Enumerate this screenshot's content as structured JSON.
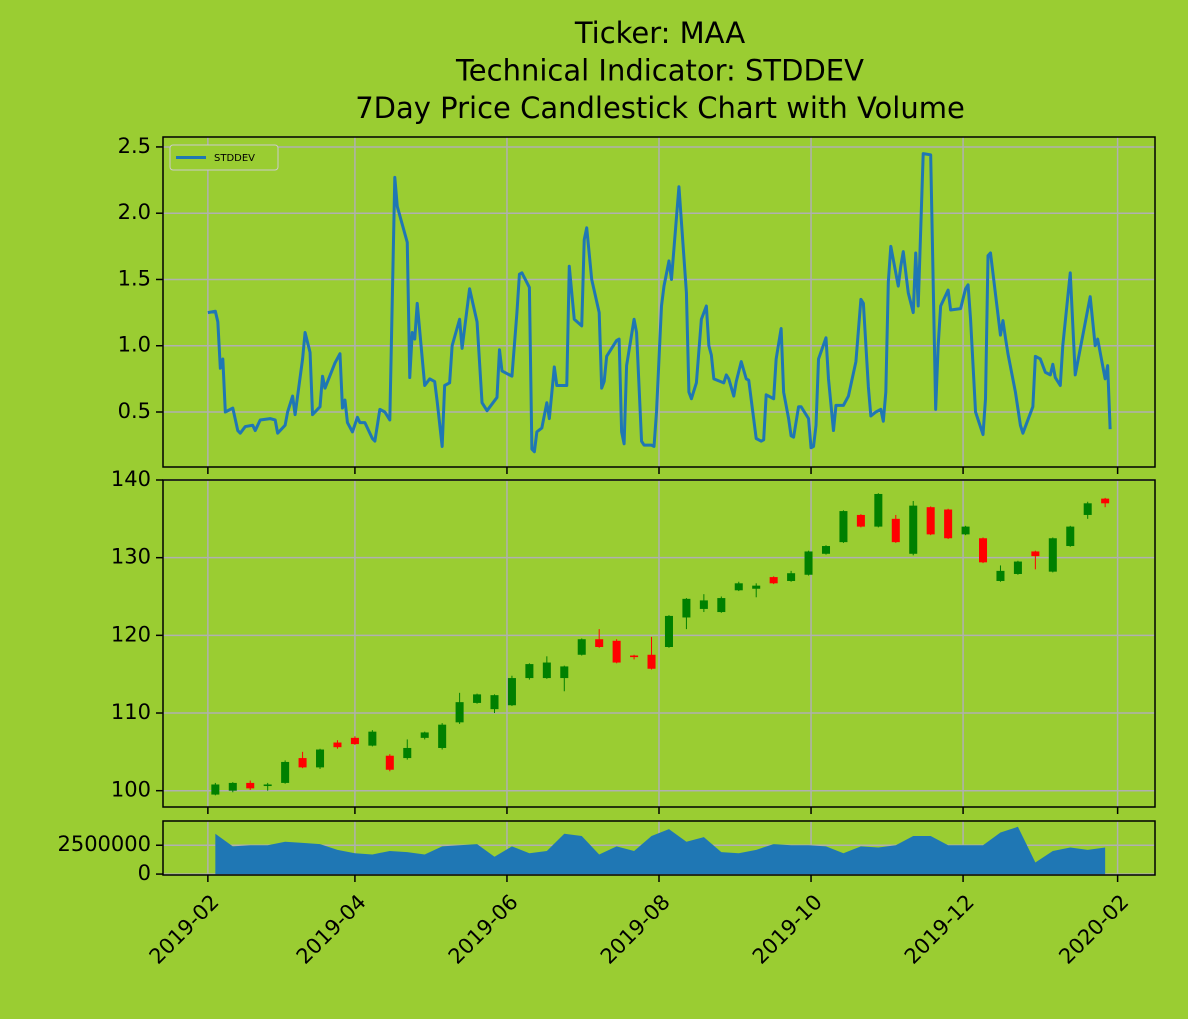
{
  "chart_data": [
    {
      "type": "line",
      "title": [
        "Ticker: MAA",
        "Technical Indicator: STDDEV",
        "7Day Price Candlestick Chart with Volume"
      ],
      "x": [
        "2019-02-01",
        "2019-02-04",
        "2019-02-05",
        "2019-02-06",
        "2019-02-07",
        "2019-02-08",
        "2019-02-11",
        "2019-02-13",
        "2019-02-14",
        "2019-02-16",
        "2019-02-19",
        "2019-02-20",
        "2019-02-22",
        "2019-02-26",
        "2019-02-28",
        "2019-03-01",
        "2019-03-04",
        "2019-03-05",
        "2019-03-07",
        "2019-03-08",
        "2019-03-11",
        "2019-03-12",
        "2019-03-14",
        "2019-03-15",
        "2019-03-18",
        "2019-03-19",
        "2019-03-20",
        "2019-03-24",
        "2019-03-26",
        "2019-03-27",
        "2019-03-28",
        "2019-03-29",
        "2019-03-31",
        "2019-04-02",
        "2019-04-03",
        "2019-04-05",
        "2019-04-08",
        "2019-04-09",
        "2019-04-11",
        "2019-04-13",
        "2019-04-15",
        "2019-04-17",
        "2019-04-18",
        "2019-04-22",
        "2019-04-23",
        "2019-04-24",
        "2019-04-25",
        "2019-04-26",
        "2019-04-29",
        "2019-05-01",
        "2019-05-03",
        "2019-05-04",
        "2019-05-06",
        "2019-05-07",
        "2019-05-09",
        "2019-05-10",
        "2019-05-13",
        "2019-05-14",
        "2019-05-17",
        "2019-05-20",
        "2019-05-22",
        "2019-05-24",
        "2019-05-28",
        "2019-05-29",
        "2019-05-30",
        "2019-06-03",
        "2019-06-05",
        "2019-06-06",
        "2019-06-07",
        "2019-06-10",
        "2019-06-11",
        "2019-06-12",
        "2019-06-13",
        "2019-06-15",
        "2019-06-17",
        "2019-06-18",
        "2019-06-20",
        "2019-06-21",
        "2019-06-25",
        "2019-06-26",
        "2019-06-28",
        "2019-07-01",
        "2019-07-02",
        "2019-07-03",
        "2019-07-05",
        "2019-07-08",
        "2019-07-09",
        "2019-07-10",
        "2019-07-11",
        "2019-07-15",
        "2019-07-16",
        "2019-07-17",
        "2019-07-18",
        "2019-07-19",
        "2019-07-22",
        "2019-07-23",
        "2019-07-25",
        "2019-07-26",
        "2019-07-29",
        "2019-07-30",
        "2019-07-31",
        "2019-08-02",
        "2019-08-03",
        "2019-08-05",
        "2019-08-06",
        "2019-08-09",
        "2019-08-12",
        "2019-08-13",
        "2019-08-14",
        "2019-08-16",
        "2019-08-18",
        "2019-08-20",
        "2019-08-21",
        "2019-08-22",
        "2019-08-23",
        "2019-08-27",
        "2019-08-28",
        "2019-08-29",
        "2019-08-31",
        "2019-09-01",
        "2019-09-03",
        "2019-09-05",
        "2019-09-06",
        "2019-09-09",
        "2019-09-11",
        "2019-09-12",
        "2019-09-13",
        "2019-09-16",
        "2019-09-17",
        "2019-09-19",
        "2019-09-20",
        "2019-09-22",
        "2019-09-23",
        "2019-09-24",
        "2019-09-26",
        "2019-09-27",
        "2019-09-30",
        "2019-10-01",
        "2019-10-02",
        "2019-10-03",
        "2019-10-04",
        "2019-10-07",
        "2019-10-08",
        "2019-10-10",
        "2019-10-11",
        "2019-10-14",
        "2019-10-16",
        "2019-10-19",
        "2019-10-21",
        "2019-10-22",
        "2019-10-24",
        "2019-10-25",
        "2019-10-27",
        "2019-10-29",
        "2019-10-30",
        "2019-10-31",
        "2019-11-01",
        "2019-11-02",
        "2019-11-05",
        "2019-11-06",
        "2019-11-07",
        "2019-11-09",
        "2019-11-11",
        "2019-11-12",
        "2019-11-13",
        "2019-11-15",
        "2019-11-18",
        "2019-11-20",
        "2019-11-21",
        "2019-11-22",
        "2019-11-24",
        "2019-11-25",
        "2019-11-26",
        "2019-11-30",
        "2019-12-02",
        "2019-12-03",
        "2019-12-04",
        "2019-12-06",
        "2019-12-09",
        "2019-12-10",
        "2019-12-11",
        "2019-12-12",
        "2019-12-16",
        "2019-12-17",
        "2019-12-18",
        "2019-12-19",
        "2019-12-22",
        "2019-12-24",
        "2019-12-25",
        "2019-12-29",
        "2019-12-30",
        "2020-01-01",
        "2020-01-03",
        "2020-01-05",
        "2020-01-06",
        "2020-01-07",
        "2020-01-09",
        "2020-01-10",
        "2020-01-13",
        "2020-01-15",
        "2020-01-21",
        "2020-01-23",
        "2020-01-24",
        "2020-01-27",
        "2020-01-28",
        "2020-01-29"
      ],
      "series": [
        {
          "name": "STDDEV",
          "color": "#1f77b4",
          "values": [
            1.25,
            1.26,
            1.18,
            0.83,
            0.9,
            0.5,
            0.53,
            0.36,
            0.34,
            0.39,
            0.4,
            0.36,
            0.44,
            0.45,
            0.44,
            0.34,
            0.4,
            0.5,
            0.62,
            0.48,
            0.9,
            1.1,
            0.95,
            0.48,
            0.54,
            0.77,
            0.68,
            0.87,
            0.94,
            0.53,
            0.59,
            0.42,
            0.35,
            0.46,
            0.42,
            0.42,
            0.3,
            0.28,
            0.52,
            0.5,
            0.44,
            2.27,
            2.05,
            1.78,
            0.76,
            1.1,
            1.05,
            1.32,
            0.7,
            0.75,
            0.73,
            0.58,
            0.24,
            0.7,
            0.72,
            1.0,
            1.2,
            0.98,
            1.43,
            1.18,
            0.57,
            0.51,
            0.61,
            0.97,
            0.81,
            0.77,
            1.25,
            1.54,
            1.55,
            1.44,
            0.22,
            0.2,
            0.35,
            0.38,
            0.57,
            0.45,
            0.84,
            0.7,
            0.7,
            1.6,
            1.2,
            1.15,
            1.8,
            1.89,
            1.5,
            1.25,
            0.68,
            0.73,
            0.92,
            1.04,
            1.05,
            0.35,
            0.26,
            0.85,
            1.2,
            1.1,
            0.28,
            0.25,
            0.25,
            0.24,
            0.5,
            1.3,
            1.45,
            1.64,
            1.5,
            2.2,
            1.4,
            0.65,
            0.6,
            0.72,
            1.2,
            1.3,
            1.0,
            0.93,
            0.75,
            0.72,
            0.78,
            0.75,
            0.62,
            0.73,
            0.88,
            0.75,
            0.74,
            0.3,
            0.28,
            0.29,
            0.63,
            0.6,
            0.9,
            1.13,
            0.65,
            0.45,
            0.32,
            0.31,
            0.54,
            0.54,
            0.45,
            0.23,
            0.24,
            0.4,
            0.9,
            1.06,
            0.75,
            0.36,
            0.55,
            0.55,
            0.62,
            0.88,
            1.35,
            1.32,
            0.69,
            0.47,
            0.5,
            0.52,
            0.43,
            0.65,
            1.48,
            1.75,
            1.45,
            1.6,
            1.71,
            1.4,
            1.25,
            1.7,
            1.3,
            2.45,
            2.44,
            0.52,
            1.0,
            1.3,
            1.38,
            1.42,
            1.27,
            1.28,
            1.43,
            1.46,
            1.2,
            0.5,
            0.33,
            0.6,
            1.68,
            1.7,
            1.08,
            1.19,
            1.06,
            0.94,
            0.65,
            0.4,
            0.34,
            0.54,
            0.92,
            0.9,
            0.8,
            0.78,
            0.86,
            0.76,
            0.7,
            1.0,
            1.55,
            0.78,
            1.37,
            1.0,
            1.05,
            0.75,
            0.85,
            0.37
          ]
        }
      ],
      "xlim": [
        "2019-01-14",
        "2020-02-16"
      ],
      "xticks": [
        "2019-02-01",
        "2019-04-01",
        "2019-06-01",
        "2019-08-01",
        "2019-10-01",
        "2019-12-01",
        "2020-02-01"
      ],
      "ylim": [
        0.085,
        2.575
      ],
      "yticks": [
        0.5,
        {
          "value": 1,
          "label": "1.0"
        },
        1.5,
        {
          "value": 2,
          "label": "2.0"
        },
        2.5
      ],
      "grid": true,
      "legend": "upper left"
    },
    {
      "type": "candlestick",
      "x": [
        "2019-02-04",
        "2019-02-11",
        "2019-02-18",
        "2019-02-25",
        "2019-03-04",
        "2019-03-11",
        "2019-03-18",
        "2019-03-25",
        "2019-04-01",
        "2019-04-08",
        "2019-04-15",
        "2019-04-22",
        "2019-04-29",
        "2019-05-06",
        "2019-05-13",
        "2019-05-20",
        "2019-05-27",
        "2019-06-03",
        "2019-06-10",
        "2019-06-17",
        "2019-06-24",
        "2019-07-01",
        "2019-07-08",
        "2019-07-15",
        "2019-07-22",
        "2019-07-29",
        "2019-08-05",
        "2019-08-12",
        "2019-08-19",
        "2019-08-26",
        "2019-09-02",
        "2019-09-09",
        "2019-09-16",
        "2019-09-23",
        "2019-09-30",
        "2019-10-07",
        "2019-10-14",
        "2019-10-21",
        "2019-10-28",
        "2019-11-04",
        "2019-11-11",
        "2019-11-18",
        "2019-11-25",
        "2019-12-02",
        "2019-12-09",
        "2019-12-16",
        "2019-12-23",
        "2019-12-30",
        "2020-01-06",
        "2020-01-13",
        "2020-01-20",
        "2020-01-27"
      ],
      "open": [
        99.5,
        100,
        101,
        100.6,
        101,
        104.2,
        103,
        106.2,
        106.8,
        105.8,
        104.5,
        104.2,
        106.8,
        105.5,
        108.8,
        111.3,
        110.5,
        111,
        114.5,
        114.5,
        114.5,
        117.5,
        119.5,
        119.3,
        117.4,
        117.5,
        118.5,
        122.3,
        123.4,
        123,
        125.8,
        126,
        127.5,
        127,
        127.8,
        130.5,
        132,
        135.5,
        134,
        135,
        130.5,
        136.5,
        136.2,
        133,
        132.5,
        127,
        127.9,
        130.8,
        128.2,
        131.5,
        135.5,
        137.6
      ],
      "high": [
        101,
        101.1,
        101.3,
        101,
        103.9,
        105,
        105.4,
        106.5,
        107,
        107.8,
        104.7,
        106.6,
        107.6,
        108.7,
        112.6,
        112.5,
        112.4,
        114.8,
        116.4,
        117.3,
        116.1,
        119.6,
        120.8,
        119.5,
        117.5,
        119.8,
        122.6,
        124.8,
        125.3,
        125,
        126.9,
        126.7,
        127.6,
        128.3,
        130.9,
        131.6,
        136.1,
        135.6,
        138.3,
        135.5,
        137.3,
        136.6,
        136.3,
        134.1,
        132.6,
        129,
        129.6,
        130.9,
        132.6,
        134.1,
        137.2,
        137.7
      ],
      "low": [
        99.4,
        99.8,
        100.1,
        100,
        100.9,
        102.9,
        102.8,
        105.4,
        105.9,
        105.7,
        102.5,
        104,
        106.6,
        105.3,
        108.6,
        111.2,
        110,
        110.9,
        114.3,
        114.4,
        112.8,
        117.4,
        118.4,
        116.4,
        116.9,
        115.6,
        118.4,
        120.8,
        123,
        122.9,
        125.7,
        124.9,
        126.6,
        126.9,
        127.7,
        130.4,
        131.9,
        133.9,
        133.9,
        131.9,
        130.3,
        132.9,
        132.4,
        132.9,
        129.3,
        126.9,
        127.8,
        128.5,
        128.1,
        131.4,
        135,
        136.5
      ],
      "close": [
        100.8,
        101,
        100.3,
        100.8,
        103.7,
        103,
        105.3,
        105.6,
        106,
        107.6,
        102.7,
        105.5,
        107.5,
        108.5,
        111.4,
        112.4,
        112.3,
        114.5,
        116.3,
        116.5,
        116,
        119.5,
        118.5,
        116.5,
        117.2,
        115.7,
        122.5,
        124.7,
        124.5,
        124.8,
        126.7,
        126.4,
        126.7,
        128,
        130.8,
        131.5,
        136,
        134,
        138.2,
        132,
        136.7,
        133,
        132.5,
        134,
        129.4,
        128.3,
        129.5,
        130.2,
        132.5,
        134,
        137,
        137
      ],
      "up_color": "green",
      "down_color": "red",
      "xlim": [
        "2019-01-14",
        "2020-02-16"
      ],
      "xticks": [
        "2019-02-01",
        "2019-04-01",
        "2019-06-01",
        "2019-08-01",
        "2019-10-01",
        "2019-12-01",
        "2020-02-01"
      ],
      "ylim": [
        97.9,
        140
      ],
      "yticks": [
        100,
        110,
        120,
        130,
        140
      ],
      "grid": true
    },
    {
      "type": "area",
      "x": [
        "2019-02-04",
        "2019-02-11",
        "2019-02-18",
        "2019-02-25",
        "2019-03-04",
        "2019-03-11",
        "2019-03-18",
        "2019-03-25",
        "2019-04-01",
        "2019-04-08",
        "2019-04-15",
        "2019-04-22",
        "2019-04-29",
        "2019-05-06",
        "2019-05-13",
        "2019-05-20",
        "2019-05-27",
        "2019-06-03",
        "2019-06-10",
        "2019-06-17",
        "2019-06-24",
        "2019-07-01",
        "2019-07-08",
        "2019-07-15",
        "2019-07-22",
        "2019-07-29",
        "2019-08-05",
        "2019-08-12",
        "2019-08-19",
        "2019-08-26",
        "2019-09-02",
        "2019-09-09",
        "2019-09-16",
        "2019-09-23",
        "2019-09-30",
        "2019-10-07",
        "2019-10-14",
        "2019-10-21",
        "2019-10-28",
        "2019-11-04",
        "2019-11-11",
        "2019-11-18",
        "2019-11-25",
        "2019-12-02",
        "2019-12-09",
        "2019-12-16",
        "2019-12-23",
        "2019-12-30",
        "2020-01-06",
        "2020-01-13",
        "2020-01-20",
        "2020-01-27"
      ],
      "values": [
        3500000,
        2400000,
        2500000,
        2500000,
        2800000,
        2700000,
        2600000,
        2100000,
        1800000,
        1700000,
        2000000,
        1900000,
        1700000,
        2400000,
        2500000,
        2600000,
        1500000,
        2400000,
        1800000,
        2000000,
        3500000,
        3300000,
        1700000,
        2400000,
        2000000,
        3300000,
        3900000,
        2800000,
        3200000,
        1900000,
        1800000,
        2100000,
        2600000,
        2500000,
        2500000,
        2400000,
        1800000,
        2400000,
        2300000,
        2500000,
        3300000,
        3300000,
        2500000,
        2500000,
        2500000,
        3600000,
        4100000,
        1000000,
        2000000,
        2300000,
        2100000,
        2300000
      ],
      "color": "#1f77b4",
      "xlim": [
        "2019-01-14",
        "2020-02-16"
      ],
      "xticks": [
        {
          "value": "2019-02-01",
          "label": "2019-02"
        },
        {
          "value": "2019-04-01",
          "label": "2019-04"
        },
        {
          "value": "2019-06-01",
          "label": "2019-06"
        },
        {
          "value": "2019-08-01",
          "label": "2019-08"
        },
        {
          "value": "2019-10-01",
          "label": "2019-10"
        },
        {
          "value": "2019-12-01",
          "label": "2019-12"
        },
        {
          "value": "2020-02-01",
          "label": "2020-02"
        }
      ],
      "ylim": [
        -80000,
        4600000
      ],
      "yticks": [
        0,
        2500000
      ],
      "grid": true
    }
  ]
}
